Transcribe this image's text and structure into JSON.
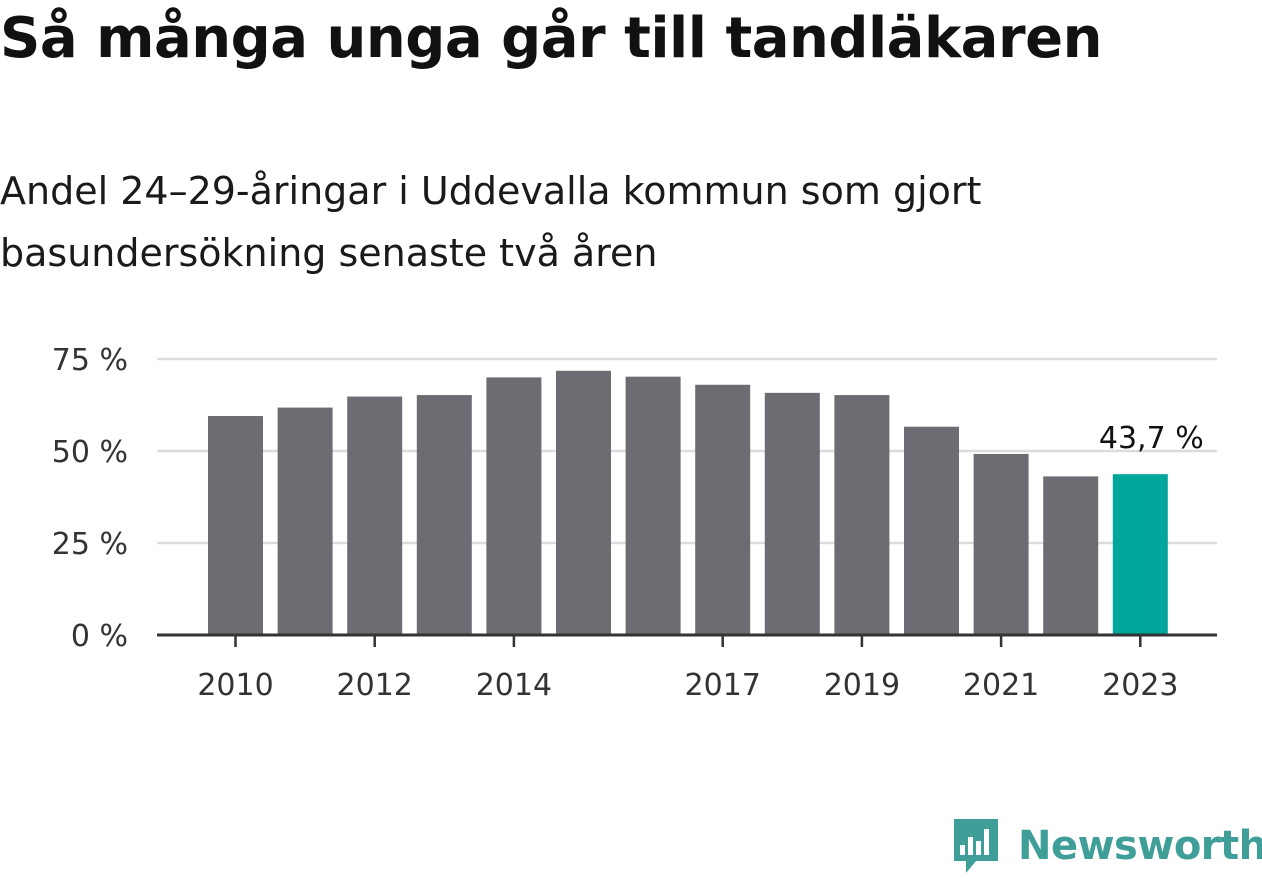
{
  "title": "Så många unga går till tandläkaren",
  "subtitle": "Andel 24–29-åringar i Uddevalla kommun som gjort basundersökning senaste två åren",
  "chart_data": {
    "type": "bar",
    "categories": [
      "2010",
      "2011",
      "2012",
      "2013",
      "2014",
      "2015",
      "2016",
      "2017",
      "2018",
      "2019",
      "2020",
      "2021",
      "2022",
      "2023"
    ],
    "values": [
      59.5,
      61.8,
      64.8,
      65.2,
      70.0,
      71.8,
      70.2,
      68.0,
      65.8,
      65.2,
      56.6,
      49.2,
      43.1,
      43.7
    ],
    "x_tick_labels": [
      "2010",
      "2012",
      "2014",
      "2017",
      "2019",
      "2021",
      "2023"
    ],
    "y_ticks": [
      0,
      25,
      50,
      75
    ],
    "y_tick_labels": [
      "0 %",
      "25 %",
      "50 %",
      "75 %"
    ],
    "ylim": [
      0,
      75
    ],
    "grid": true,
    "highlight_index": 13,
    "highlight_label": "43,7 %",
    "colors": {
      "bar": "#6d6c72",
      "highlight": "#00a69c",
      "grid": "#dcdcdc",
      "axis": "#333333"
    }
  },
  "logo": {
    "text": "Newsworthy",
    "color": "#3f9e98",
    "icon": "speech-bubble-bar-chart-icon"
  }
}
